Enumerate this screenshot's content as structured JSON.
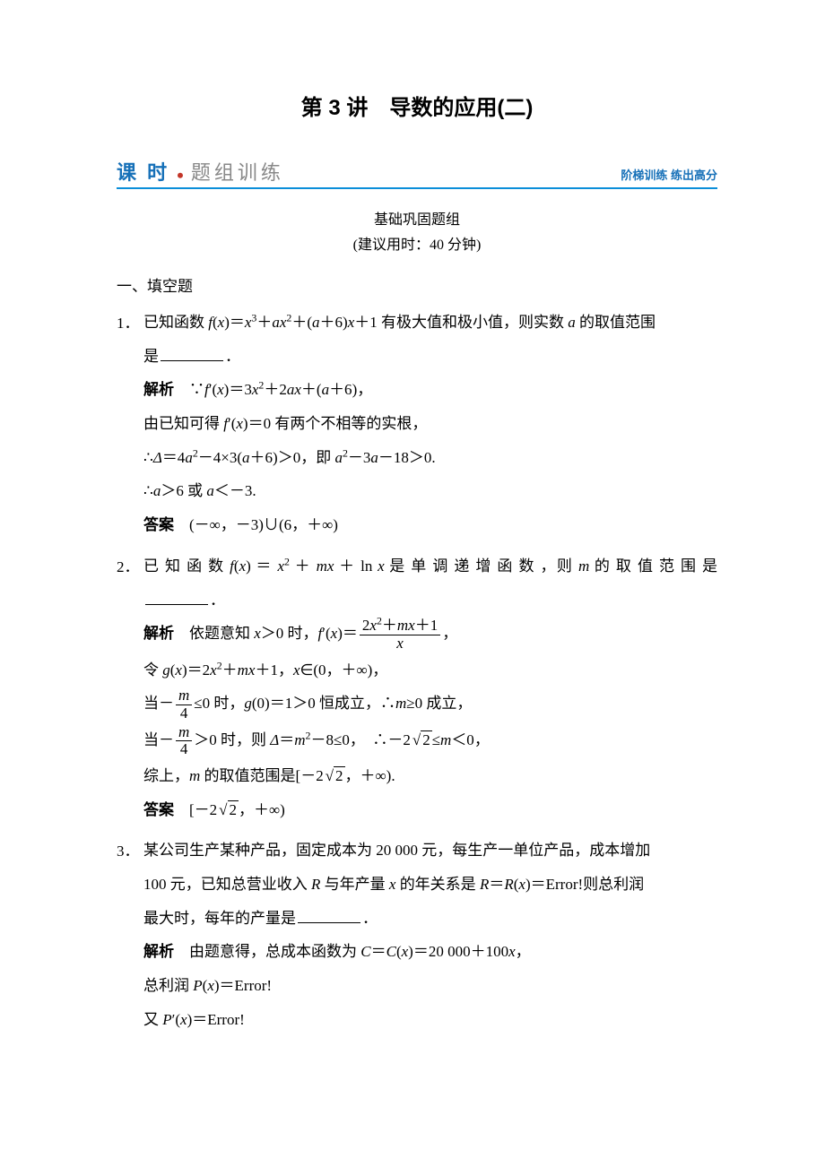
{
  "title": "第 3 讲　导数的应用(二)",
  "bar": {
    "left_blue": "课 时",
    "left_gray": "题组训练",
    "right": "阶梯训练 练出高分"
  },
  "subtitle": "基础巩固题组",
  "hint": "(建议用时：40 分钟)",
  "heading": "一、填空题",
  "p1": {
    "num": "1．",
    "q_a": "已知函数 ",
    "q_b": "有极大值和极小值，则实数 ",
    "q_c": " 的取值范围",
    "q_d": "是",
    "q_e": "．",
    "s_label": "解析",
    "s1_a": "　∵",
    "s1_b": "，",
    "s2_a": "由已知可得 ",
    "s2_b": " 有两个不相等的实根，",
    "s3_a": "∴",
    "s3_b": "，即 ",
    "s4_a": "∴",
    "s4_b": " 或 ",
    "a_label": "答案",
    "a1": "　(－∞，－3)∪(6，＋∞)"
  },
  "p2": {
    "num": "2．",
    "q_a": "已 知 函 数 ",
    "q_b": " 是 单 调 递 增 函 数 ，则 ",
    "q_c": " 的 取 值 范 围 是",
    "q_d": "．",
    "s_label": "解析",
    "s1_a": "　依题意知 ",
    "s1_b": " 时，",
    "s1_c": "，",
    "s2_a": "令 ",
    "s2_b": "，",
    "s2_c": "，",
    "s3_a": "当",
    "s3_b": " 时，",
    "s3_c": " 恒成立，∴",
    "s3_d": " 成立，",
    "s4_a": "当",
    "s4_b": " 时，则 ",
    "s4_c": "，　∴",
    "s4_d": "，",
    "s5_a": "综上，",
    "s5_b": " 的取值范围是",
    "a_label": "答案"
  },
  "p3": {
    "num": "3．",
    "q_a": "某公司生产某种产品，固定成本为 20 000 元，每生产一单位产品，成本增加",
    "q_b": "100 元，已知总营业收入 ",
    "q_c": " 与年产量 ",
    "q_d": " 的年关系是 ",
    "q_e": "Error!",
    "q_f": "则总利润",
    "q_g": "最大时，每年的产量是",
    "q_h": "．",
    "s_label": "解析",
    "s1_a": "　由题意得，总成本函数为 ",
    "s1_b": "，",
    "s2_a": "总利润 ",
    "s2_b": "Error!",
    "s3_a": "又 ",
    "s3_b": "Error!"
  }
}
